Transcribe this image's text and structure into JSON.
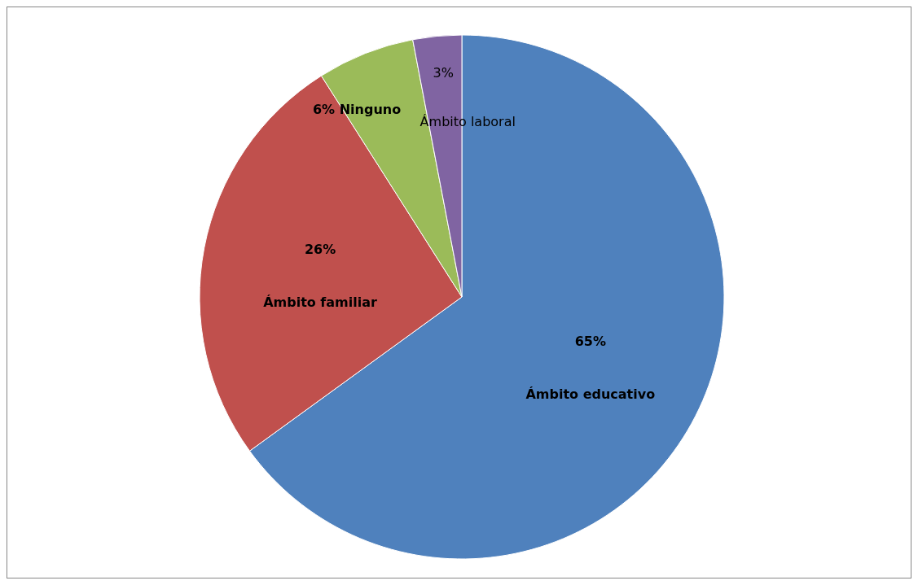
{
  "chart_data": {
    "type": "pie",
    "categories": [
      "Ámbito educativo",
      "Ámbito familiar",
      "Ninguno",
      "Ámbito laboral"
    ],
    "values": [
      65,
      26,
      6,
      3
    ],
    "colors": [
      "#4f81bd",
      "#c0504d",
      "#9bbb59",
      "#8064a2"
    ],
    "value_labels": [
      "65%",
      "26%",
      "6%",
      "3%"
    ]
  }
}
